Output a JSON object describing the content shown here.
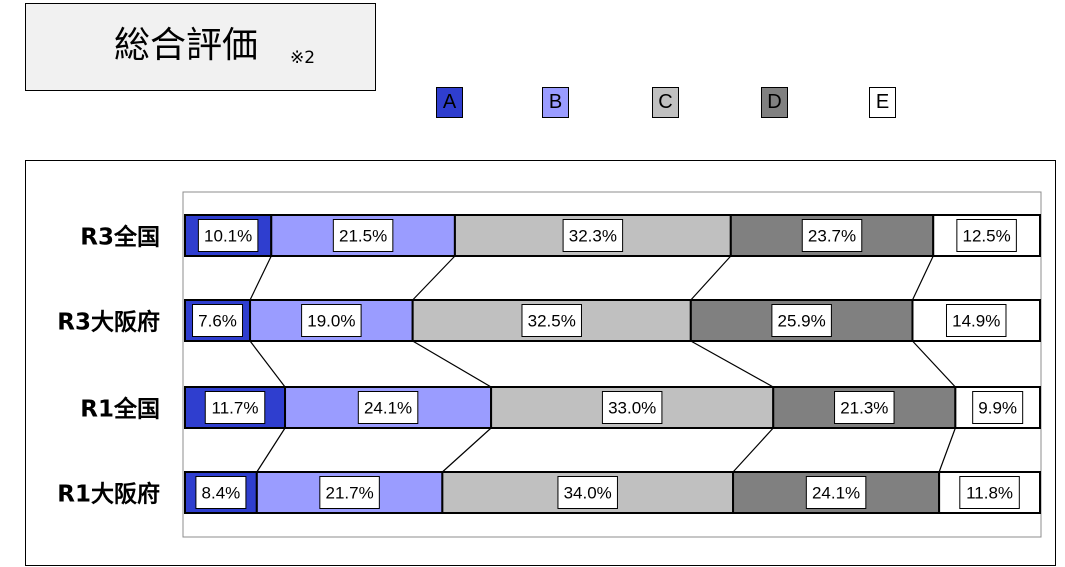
{
  "title": {
    "main": "総合評価",
    "note": "※2"
  },
  "colors": {
    "A": "#2f3ecf",
    "B": "#9a9cff",
    "C": "#c0c0c0",
    "D": "#808080",
    "E": "#ffffff"
  },
  "chart_data": {
    "type": "bar",
    "stacked": "100%",
    "orientation": "horizontal",
    "categories": [
      "R3全国",
      "R3大阪府",
      "R1全国",
      "R1大阪府"
    ],
    "legend": [
      "A",
      "B",
      "C",
      "D",
      "E"
    ],
    "legend_position": "top",
    "series": [
      {
        "name": "A",
        "values": [
          10.1,
          7.6,
          11.7,
          8.4
        ]
      },
      {
        "name": "B",
        "values": [
          21.5,
          19.0,
          24.1,
          21.7
        ]
      },
      {
        "name": "C",
        "values": [
          32.3,
          32.5,
          33.0,
          34.0
        ]
      },
      {
        "name": "D",
        "values": [
          23.7,
          25.9,
          21.3,
          24.1
        ]
      },
      {
        "name": "E",
        "values": [
          12.5,
          14.9,
          9.9,
          11.8
        ]
      }
    ],
    "data_labels": [
      [
        "10.1%",
        "21.5%",
        "32.3%",
        "23.7%",
        "12.5%"
      ],
      [
        "7.6%",
        "19.0%",
        "32.5%",
        "25.9%",
        "14.9%"
      ],
      [
        "11.7%",
        "24.1%",
        "33.0%",
        "21.3%",
        "9.9%"
      ],
      [
        "8.4%",
        "21.7%",
        "34.0%",
        "24.1%",
        "11.8%"
      ]
    ],
    "series_lines": true,
    "grid": false
  }
}
